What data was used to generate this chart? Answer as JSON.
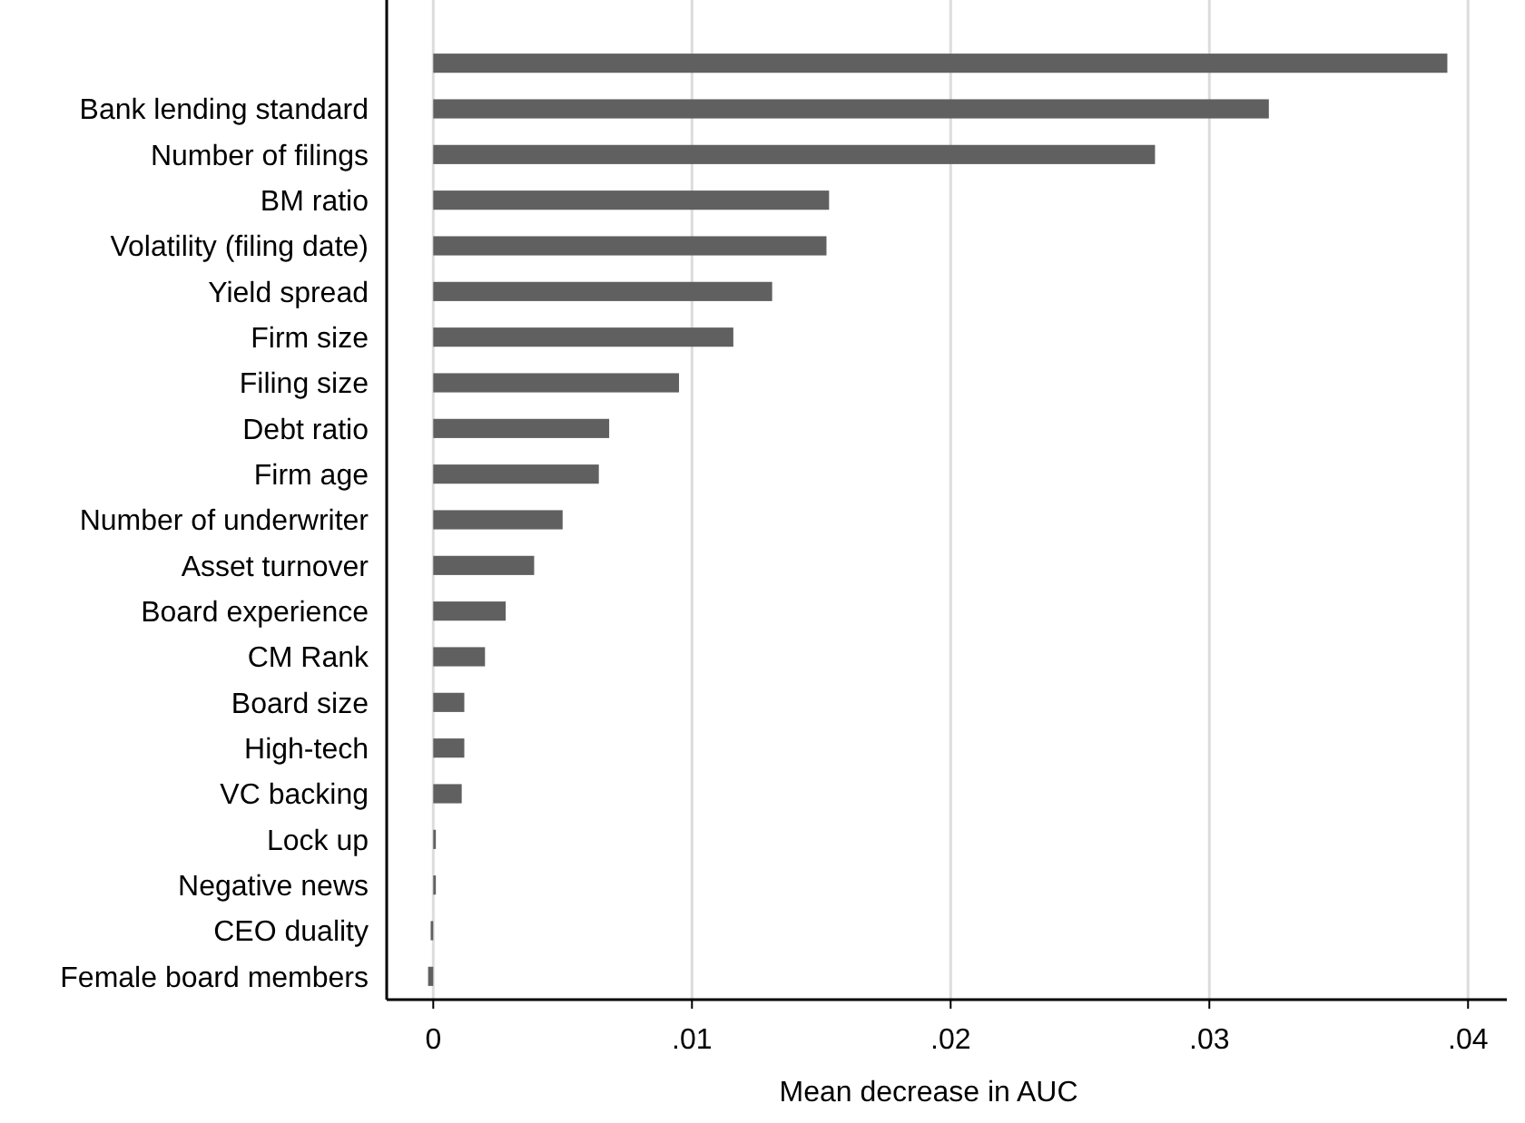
{
  "chart_data": {
    "type": "bar",
    "orientation": "horizontal",
    "xlabel": "Mean decrease in AUC",
    "categories": [
      null,
      "Bank lending standard",
      "Number of filings",
      "BM ratio",
      "Volatility (filing date)",
      "Yield spread",
      "Firm size",
      "Filing size",
      "Debt ratio",
      "Firm age",
      "Number of underwriter",
      "Asset turnover",
      "Board experience",
      "CM Rank",
      "Board size",
      "High-tech",
      "VC backing",
      "Lock up",
      "Negative news",
      "CEO duality",
      "Female board members"
    ],
    "values": [
      0.0392,
      0.0323,
      0.0279,
      0.0153,
      0.0152,
      0.0131,
      0.0116,
      0.0095,
      0.0068,
      0.0064,
      0.005,
      0.0039,
      0.0028,
      0.002,
      0.0012,
      0.0012,
      0.0011,
      0.0001,
      0.0001,
      -0.0001,
      -0.0002
    ],
    "color": "#606060",
    "xlim": [
      -0.0018,
      0.0415
    ],
    "xticks": [
      {
        "value": 0,
        "label": "0"
      },
      {
        "value": 0.01,
        "label": ".01"
      },
      {
        "value": 0.02,
        "label": ".02"
      },
      {
        "value": 0.03,
        "label": ".03"
      },
      {
        "value": 0.04,
        "label": ".04"
      }
    ],
    "grid": "x"
  }
}
